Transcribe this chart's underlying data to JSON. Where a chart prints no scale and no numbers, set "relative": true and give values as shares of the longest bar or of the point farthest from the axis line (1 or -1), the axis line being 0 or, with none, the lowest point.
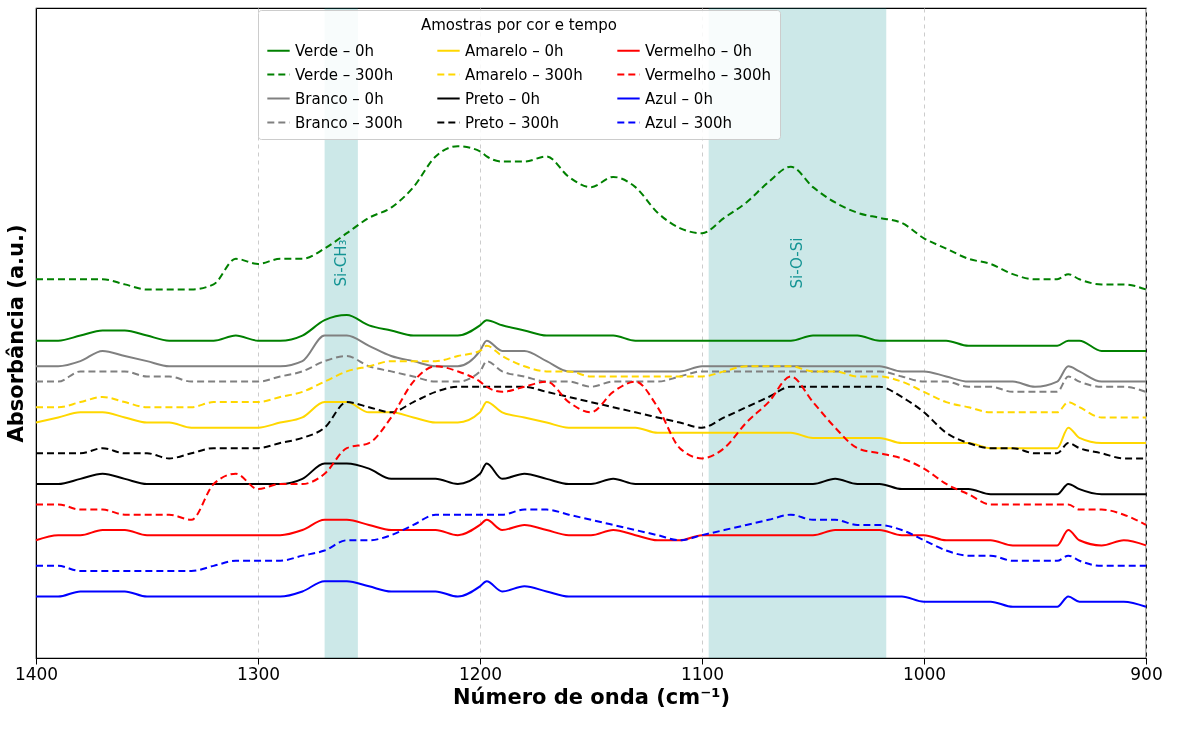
{
  "chart_data": {
    "type": "line",
    "relative": true,
    "xlabel": "Número de onda (cm⁻¹)",
    "ylabel": "Absorbância (a.u.)",
    "legend_title": "Amostras por cor e tempo",
    "legend": "top",
    "grid": "x",
    "xlim": [
      1400,
      900
    ],
    "xticks": [
      1400,
      1300,
      1200,
      1100,
      1000,
      900
    ],
    "x": [
      1400,
      1390,
      1380,
      1370,
      1360,
      1350,
      1340,
      1330,
      1320,
      1310,
      1300,
      1290,
      1280,
      1270,
      1260,
      1250,
      1240,
      1230,
      1220,
      1210,
      1200,
      1197,
      1190,
      1180,
      1170,
      1160,
      1150,
      1140,
      1130,
      1120,
      1110,
      1100,
      1090,
      1080,
      1070,
      1060,
      1050,
      1040,
      1030,
      1020,
      1010,
      1000,
      990,
      980,
      970,
      960,
      950,
      940,
      935,
      930,
      920,
      910,
      900
    ],
    "bands": [
      {
        "axis": "x",
        "from": 1270,
        "to": 1255,
        "label": "Si-CH₃",
        "color": "#008b8b"
      },
      {
        "axis": "x",
        "from": 1097,
        "to": 1017,
        "label": "Si-O-Si",
        "color": "#008b8b"
      }
    ],
    "series": [
      {
        "name": "Verde – 0h",
        "color": "#008000",
        "line_style": "solid",
        "values": [
          0.62,
          0.62,
          0.63,
          0.64,
          0.64,
          0.63,
          0.62,
          0.62,
          0.62,
          0.63,
          0.62,
          0.62,
          0.63,
          0.66,
          0.67,
          0.65,
          0.64,
          0.63,
          0.63,
          0.63,
          0.65,
          0.66,
          0.65,
          0.64,
          0.63,
          0.63,
          0.63,
          0.63,
          0.62,
          0.62,
          0.62,
          0.62,
          0.62,
          0.62,
          0.62,
          0.62,
          0.63,
          0.63,
          0.63,
          0.62,
          0.62,
          0.62,
          0.62,
          0.61,
          0.61,
          0.61,
          0.61,
          0.61,
          0.62,
          0.62,
          0.6,
          0.6,
          0.6
        ]
      },
      {
        "name": "Verde – 300h",
        "color": "#008000",
        "line_style": "dashed",
        "values": [
          0.74,
          0.74,
          0.74,
          0.74,
          0.73,
          0.72,
          0.72,
          0.72,
          0.73,
          0.78,
          0.77,
          0.78,
          0.78,
          0.8,
          0.83,
          0.86,
          0.88,
          0.92,
          0.98,
          1.0,
          0.99,
          0.98,
          0.97,
          0.97,
          0.98,
          0.94,
          0.92,
          0.94,
          0.92,
          0.87,
          0.84,
          0.83,
          0.86,
          0.89,
          0.93,
          0.96,
          0.92,
          0.89,
          0.87,
          0.86,
          0.85,
          0.82,
          0.8,
          0.78,
          0.77,
          0.75,
          0.74,
          0.74,
          0.75,
          0.74,
          0.73,
          0.73,
          0.72
        ]
      },
      {
        "name": "Branco – 0h",
        "color": "#808080",
        "line_style": "solid",
        "values": [
          0.57,
          0.57,
          0.58,
          0.6,
          0.59,
          0.58,
          0.57,
          0.57,
          0.57,
          0.57,
          0.57,
          0.57,
          0.58,
          0.63,
          0.63,
          0.61,
          0.59,
          0.58,
          0.57,
          0.57,
          0.6,
          0.62,
          0.6,
          0.6,
          0.58,
          0.56,
          0.56,
          0.56,
          0.56,
          0.56,
          0.56,
          0.57,
          0.57,
          0.57,
          0.57,
          0.57,
          0.57,
          0.57,
          0.57,
          0.57,
          0.56,
          0.56,
          0.55,
          0.54,
          0.54,
          0.54,
          0.53,
          0.54,
          0.57,
          0.56,
          0.54,
          0.54,
          0.54
        ]
      },
      {
        "name": "Branco – 300h",
        "color": "#808080",
        "line_style": "dashed",
        "values": [
          0.54,
          0.54,
          0.56,
          0.56,
          0.56,
          0.55,
          0.55,
          0.54,
          0.54,
          0.54,
          0.54,
          0.55,
          0.56,
          0.58,
          0.59,
          0.57,
          0.56,
          0.55,
          0.54,
          0.54,
          0.56,
          0.58,
          0.56,
          0.55,
          0.54,
          0.54,
          0.53,
          0.54,
          0.54,
          0.54,
          0.55,
          0.56,
          0.56,
          0.56,
          0.56,
          0.56,
          0.56,
          0.56,
          0.56,
          0.56,
          0.55,
          0.54,
          0.54,
          0.53,
          0.53,
          0.52,
          0.52,
          0.52,
          0.55,
          0.54,
          0.53,
          0.53,
          0.52
        ]
      },
      {
        "name": "Amarelo – 0h",
        "color": "#ffd700",
        "line_style": "solid",
        "values": [
          0.46,
          0.47,
          0.48,
          0.48,
          0.47,
          0.46,
          0.46,
          0.45,
          0.45,
          0.45,
          0.45,
          0.46,
          0.47,
          0.5,
          0.5,
          0.48,
          0.48,
          0.47,
          0.46,
          0.46,
          0.48,
          0.5,
          0.48,
          0.47,
          0.46,
          0.45,
          0.45,
          0.45,
          0.45,
          0.44,
          0.44,
          0.44,
          0.44,
          0.44,
          0.44,
          0.44,
          0.43,
          0.43,
          0.43,
          0.43,
          0.42,
          0.42,
          0.42,
          0.42,
          0.41,
          0.41,
          0.41,
          0.41,
          0.45,
          0.43,
          0.42,
          0.42,
          0.42
        ]
      },
      {
        "name": "Amarelo – 300h",
        "color": "#ffd700",
        "line_style": "dashed",
        "values": [
          0.49,
          0.49,
          0.5,
          0.51,
          0.5,
          0.49,
          0.49,
          0.49,
          0.5,
          0.5,
          0.5,
          0.51,
          0.52,
          0.54,
          0.56,
          0.57,
          0.58,
          0.58,
          0.58,
          0.59,
          0.6,
          0.61,
          0.59,
          0.57,
          0.56,
          0.56,
          0.55,
          0.55,
          0.55,
          0.55,
          0.55,
          0.55,
          0.56,
          0.57,
          0.57,
          0.57,
          0.56,
          0.56,
          0.55,
          0.55,
          0.54,
          0.52,
          0.5,
          0.49,
          0.48,
          0.48,
          0.48,
          0.48,
          0.5,
          0.49,
          0.47,
          0.47,
          0.47
        ]
      },
      {
        "name": "Preto – 0h",
        "color": "#000000",
        "line_style": "solid",
        "values": [
          0.34,
          0.34,
          0.35,
          0.36,
          0.35,
          0.34,
          0.34,
          0.34,
          0.34,
          0.34,
          0.34,
          0.34,
          0.35,
          0.38,
          0.38,
          0.37,
          0.35,
          0.35,
          0.35,
          0.34,
          0.36,
          0.38,
          0.35,
          0.36,
          0.35,
          0.34,
          0.34,
          0.35,
          0.34,
          0.34,
          0.34,
          0.34,
          0.34,
          0.34,
          0.34,
          0.34,
          0.34,
          0.35,
          0.34,
          0.34,
          0.33,
          0.33,
          0.33,
          0.33,
          0.32,
          0.32,
          0.32,
          0.32,
          0.34,
          0.33,
          0.32,
          0.32,
          0.32
        ]
      },
      {
        "name": "Preto – 300h",
        "color": "#000000",
        "line_style": "dashed",
        "values": [
          0.4,
          0.4,
          0.4,
          0.41,
          0.4,
          0.4,
          0.39,
          0.4,
          0.41,
          0.41,
          0.41,
          0.42,
          0.43,
          0.45,
          0.5,
          0.49,
          0.48,
          0.5,
          0.52,
          0.53,
          0.53,
          0.53,
          0.53,
          0.53,
          0.52,
          0.51,
          0.5,
          0.49,
          0.48,
          0.47,
          0.46,
          0.45,
          0.47,
          0.49,
          0.51,
          0.53,
          0.53,
          0.53,
          0.53,
          0.53,
          0.51,
          0.48,
          0.44,
          0.42,
          0.41,
          0.41,
          0.4,
          0.4,
          0.42,
          0.41,
          0.4,
          0.39,
          0.39
        ]
      },
      {
        "name": "Vermelho – 0h",
        "color": "#ff0000",
        "line_style": "solid",
        "values": [
          0.23,
          0.24,
          0.24,
          0.25,
          0.25,
          0.24,
          0.24,
          0.24,
          0.24,
          0.24,
          0.24,
          0.24,
          0.25,
          0.27,
          0.27,
          0.26,
          0.25,
          0.25,
          0.25,
          0.24,
          0.26,
          0.27,
          0.25,
          0.26,
          0.25,
          0.24,
          0.24,
          0.25,
          0.24,
          0.23,
          0.23,
          0.24,
          0.24,
          0.24,
          0.24,
          0.24,
          0.24,
          0.25,
          0.25,
          0.25,
          0.24,
          0.24,
          0.23,
          0.23,
          0.23,
          0.22,
          0.22,
          0.22,
          0.25,
          0.23,
          0.22,
          0.23,
          0.22
        ]
      },
      {
        "name": "Vermelho – 300h",
        "color": "#ff0000",
        "line_style": "dashed",
        "values": [
          0.3,
          0.3,
          0.29,
          0.29,
          0.28,
          0.28,
          0.28,
          0.27,
          0.34,
          0.36,
          0.33,
          0.34,
          0.34,
          0.36,
          0.41,
          0.42,
          0.47,
          0.54,
          0.57,
          0.56,
          0.54,
          0.53,
          0.52,
          0.53,
          0.54,
          0.5,
          0.48,
          0.52,
          0.54,
          0.49,
          0.41,
          0.39,
          0.41,
          0.46,
          0.5,
          0.55,
          0.5,
          0.45,
          0.41,
          0.4,
          0.39,
          0.37,
          0.34,
          0.32,
          0.3,
          0.3,
          0.3,
          0.3,
          0.3,
          0.29,
          0.29,
          0.28,
          0.26
        ]
      },
      {
        "name": "Azul – 0h",
        "color": "#0000ff",
        "line_style": "solid",
        "values": [
          0.12,
          0.12,
          0.13,
          0.13,
          0.13,
          0.12,
          0.12,
          0.12,
          0.12,
          0.12,
          0.12,
          0.12,
          0.13,
          0.15,
          0.15,
          0.14,
          0.13,
          0.13,
          0.13,
          0.12,
          0.14,
          0.15,
          0.13,
          0.14,
          0.13,
          0.12,
          0.12,
          0.12,
          0.12,
          0.12,
          0.12,
          0.12,
          0.12,
          0.12,
          0.12,
          0.12,
          0.12,
          0.12,
          0.12,
          0.12,
          0.12,
          0.11,
          0.11,
          0.11,
          0.11,
          0.1,
          0.1,
          0.1,
          0.12,
          0.11,
          0.11,
          0.11,
          0.1
        ]
      },
      {
        "name": "Azul – 300h",
        "color": "#0000ff",
        "line_style": "dashed",
        "values": [
          0.18,
          0.18,
          0.17,
          0.17,
          0.17,
          0.17,
          0.17,
          0.17,
          0.18,
          0.19,
          0.19,
          0.19,
          0.2,
          0.21,
          0.23,
          0.23,
          0.24,
          0.26,
          0.28,
          0.28,
          0.28,
          0.28,
          0.28,
          0.29,
          0.29,
          0.28,
          0.27,
          0.26,
          0.25,
          0.24,
          0.23,
          0.24,
          0.25,
          0.26,
          0.27,
          0.28,
          0.27,
          0.27,
          0.26,
          0.26,
          0.25,
          0.23,
          0.21,
          0.2,
          0.2,
          0.19,
          0.19,
          0.19,
          0.2,
          0.19,
          0.18,
          0.18,
          0.18
        ]
      }
    ]
  }
}
